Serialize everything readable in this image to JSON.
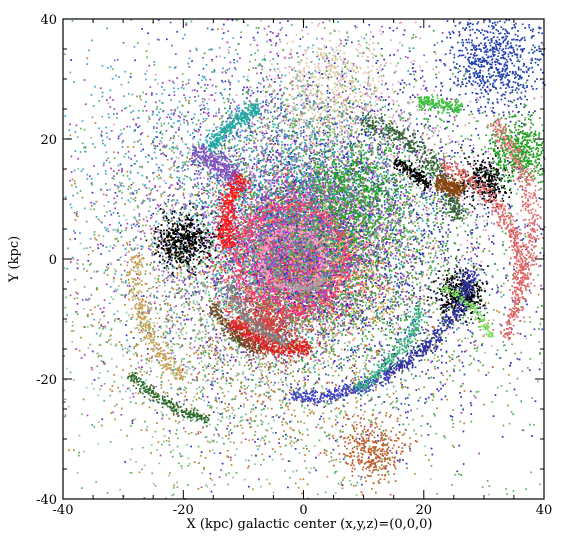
{
  "chart_data": {
    "type": "scatter",
    "title": "",
    "xlabel": "X (kpc)",
    "ylabel": "Y (kpc)",
    "annotation": "galactic center (x,y,z)=(0,0,0)",
    "xlim": [
      -40,
      40
    ],
    "ylim": [
      -40,
      40
    ],
    "xticks": [
      -40,
      -20,
      0,
      20,
      40
    ],
    "yticks": [
      -40,
      -20,
      0,
      20,
      40
    ],
    "grid": false,
    "legend": "none",
    "marker_size_data_units": 0.28,
    "series": [
      {
        "color": "#ff2040",
        "shape": "halo",
        "cx": -2,
        "cy": 0,
        "r": 12,
        "n": 2600
      },
      {
        "color": "#ff33aa",
        "shape": "halo",
        "cx": -3,
        "cy": 2,
        "r": 10,
        "n": 1400
      },
      {
        "color": "#ffa040",
        "shape": "halo",
        "cx": 3,
        "cy": -1,
        "r": 13,
        "n": 1000
      },
      {
        "color": "#ffb090",
        "shape": "halo",
        "cx": 1,
        "cy": 3,
        "r": 8,
        "n": 700
      },
      {
        "color": "#c03090",
        "shape": "halo",
        "cx": 0,
        "cy": -3,
        "r": 10,
        "n": 700
      },
      {
        "color": "#9040e0",
        "shape": "halo",
        "cx": 2,
        "cy": 6,
        "r": 15,
        "n": 800
      },
      {
        "color": "#20b0b0",
        "shape": "halo",
        "cx": -1,
        "cy": 8,
        "r": 20,
        "n": 1500
      },
      {
        "color": "#30a030",
        "shape": "halo",
        "cx": 5,
        "cy": 2,
        "r": 26,
        "n": 2200
      },
      {
        "color": "#3030c0",
        "shape": "halo",
        "cx": 6,
        "cy": 4,
        "r": 36,
        "n": 2400
      },
      {
        "color": "#a040c0",
        "shape": "halo",
        "cx": -8,
        "cy": 6,
        "r": 36,
        "n": 1600
      },
      {
        "color": "#c08030",
        "shape": "halo",
        "cx": -6,
        "cy": -8,
        "r": 34,
        "n": 1600
      },
      {
        "color": "#90c0a0",
        "shape": "halo",
        "cx": -12,
        "cy": -10,
        "r": 30,
        "n": 1200
      },
      {
        "color": "#e0a0c0",
        "shape": "halo",
        "cx": 10,
        "cy": 14,
        "r": 32,
        "n": 1100
      },
      {
        "color": "#40a0d0",
        "shape": "halo",
        "cx": -14,
        "cy": 12,
        "r": 30,
        "n": 1000
      },
      {
        "color": "#60b060",
        "shape": "halo",
        "cx": 0,
        "cy": 0,
        "r": 48,
        "n": 2000
      },
      {
        "color": "#000000",
        "shape": "halo",
        "cx": -20,
        "cy": 3,
        "r": 5,
        "n": 500
      },
      {
        "color": "#000000",
        "shape": "halo",
        "cx": 26,
        "cy": -6,
        "r": 4,
        "n": 450
      },
      {
        "color": "#000000",
        "shape": "halo",
        "cx": 30,
        "cy": 13,
        "r": 4,
        "n": 300
      },
      {
        "color": "#2040b0",
        "shape": "halo",
        "cx": 32,
        "cy": 33,
        "r": 9,
        "n": 700
      },
      {
        "color": "#c06030",
        "shape": "halo",
        "cx": 11,
        "cy": -32,
        "r": 6,
        "n": 350
      },
      {
        "color": "#20a020",
        "shape": "halo",
        "cx": 36,
        "cy": 18,
        "r": 6,
        "n": 550
      },
      {
        "color": "#20a020",
        "shape": "halo",
        "cx": 8,
        "cy": 11,
        "r": 10,
        "n": 700
      },
      {
        "color": "#a050d0",
        "shape": "halo",
        "cx": -2,
        "cy": 4,
        "r": 16,
        "n": 600
      },
      {
        "color": "#d04040",
        "shape": "halo",
        "cx": -6,
        "cy": -11,
        "r": 5,
        "n": 500
      },
      {
        "color": "#d8c8a0",
        "shape": "halo",
        "cx": 4,
        "cy": 28,
        "r": 10,
        "n": 500
      },
      {
        "color": "#e06060",
        "shape": "arc",
        "cx": 16,
        "cy": -3,
        "r": 20,
        "a0": -30,
        "a1": 70,
        "w": 0.7,
        "n": 550
      },
      {
        "color": "#e07070",
        "shape": "arc",
        "cx": 10,
        "cy": 5,
        "r": 28,
        "a0": -20,
        "a1": 40,
        "w": 0.8,
        "n": 400
      },
      {
        "color": "#8050c0",
        "shape": "arc",
        "cx": -26,
        "cy": -3,
        "r": 22,
        "a0": 48,
        "a1": 70,
        "w": 0.9,
        "n": 300
      },
      {
        "color": "#306030",
        "shape": "arc",
        "cx": 6,
        "cy": 3,
        "r": 20,
        "a0": 10,
        "a1": 80,
        "w": 0.8,
        "n": 450
      },
      {
        "color": "#40c040",
        "shape": "arc",
        "cx": 21,
        "cy": 14,
        "r": 12,
        "a0": 65,
        "a1": 100,
        "w": 0.6,
        "n": 200
      },
      {
        "color": "#8b4513",
        "shape": "arc",
        "cx": 20,
        "cy": 2,
        "r": 11,
        "a0": 55,
        "a1": 80,
        "w": 0.8,
        "n": 250
      },
      {
        "color": "#000000",
        "shape": "arc",
        "cx": 10,
        "cy": 3,
        "r": 14,
        "a0": 40,
        "a1": 70,
        "w": 0.5,
        "n": 180
      },
      {
        "color": "#3030a0",
        "shape": "arc",
        "cx": 6,
        "cy": 2,
        "r": 22,
        "a0": -70,
        "a1": -10,
        "w": 0.7,
        "n": 450
      },
      {
        "color": "#4040c0",
        "shape": "arc",
        "cx": 0,
        "cy": 5,
        "r": 28,
        "a0": -95,
        "a1": -60,
        "w": 0.6,
        "n": 300
      },
      {
        "color": "#e02020",
        "shape": "arc",
        "cx": -3,
        "cy": -4,
        "r": 11,
        "a0": 215,
        "a1": 290,
        "w": 0.7,
        "n": 400
      },
      {
        "color": "#808080",
        "shape": "arc",
        "cx": 0,
        "cy": -1,
        "r": 13,
        "a0": 195,
        "a1": 260,
        "w": 0.5,
        "n": 250
      },
      {
        "color": "#6b4a2a",
        "shape": "arc",
        "cx": -3,
        "cy": -3,
        "r": 13,
        "a0": 200,
        "a1": 250,
        "w": 0.5,
        "n": 200
      },
      {
        "color": "#ff1a1a",
        "shape": "arc",
        "cx": -1,
        "cy": 6,
        "r": 12,
        "a0": 140,
        "a1": 200,
        "w": 0.8,
        "n": 400
      },
      {
        "color": "#20a8a0",
        "shape": "arc",
        "cx": -2,
        "cy": 10,
        "r": 16,
        "a0": 110,
        "a1": 150,
        "w": 0.6,
        "n": 300
      },
      {
        "color": "#2a6a2a",
        "shape": "arc",
        "cx": -12,
        "cy": -5,
        "r": 22,
        "a0": 220,
        "a1": 260,
        "w": 0.5,
        "n": 250
      },
      {
        "color": "#c8a050",
        "shape": "arc",
        "cx": -6,
        "cy": -3,
        "r": 22,
        "a0": 170,
        "a1": 230,
        "w": 0.7,
        "n": 300
      },
      {
        "color": "#30b080",
        "shape": "arc",
        "cx": -4,
        "cy": 0,
        "r": 25,
        "a0": 300,
        "a1": 340,
        "w": 0.6,
        "n": 250
      },
      {
        "color": "#ffa0c0",
        "shape": "arc",
        "cx": -2,
        "cy": 0,
        "r": 5,
        "a0": 0,
        "a1": 360,
        "w": 0.4,
        "n": 250
      },
      {
        "color": "#ff4060",
        "shape": "arc",
        "cx": -2,
        "cy": 0,
        "r": 9,
        "a0": 0,
        "a1": 360,
        "w": 0.5,
        "n": 350
      },
      {
        "color": "#a0a0a0",
        "shape": "arc",
        "cx": 0,
        "cy": -1,
        "r": 4,
        "a0": 230,
        "a1": 330,
        "w": 0.3,
        "n": 100
      },
      {
        "color": "#80e060",
        "shape": "arc",
        "cx": 18,
        "cy": -18,
        "r": 14,
        "a0": 20,
        "a1": 70,
        "w": 0.4,
        "n": 150
      }
    ]
  }
}
